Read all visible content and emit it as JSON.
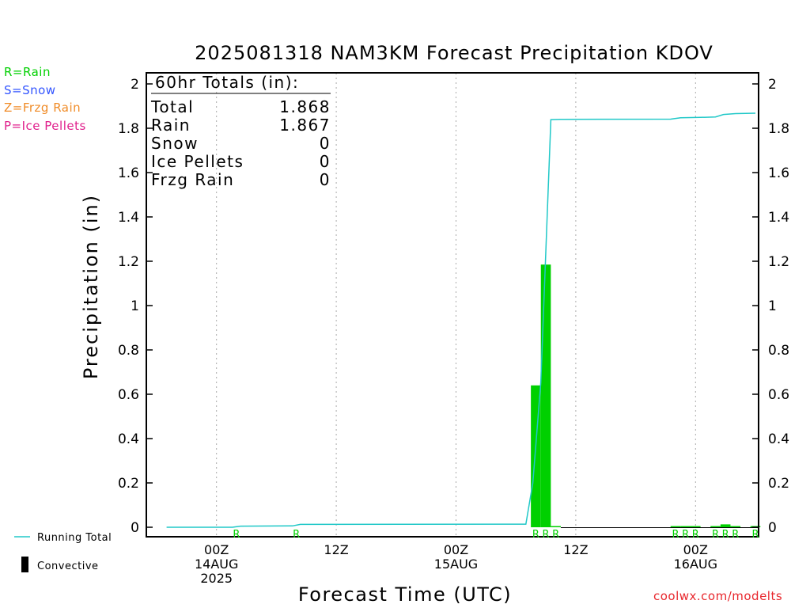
{
  "title": "2025081318 NAM3KM Forecast Precipitation KDOV",
  "precip_type_legend": [
    {
      "text": "R=Rain",
      "color": "#00d000"
    },
    {
      "text": "S=Snow",
      "color": "#3355ff"
    },
    {
      "text": "Z=Frzg Rain",
      "color": "#f08c28"
    },
    {
      "text": "P=Ice Pellets",
      "color": "#e0208c"
    }
  ],
  "totals_box": {
    "heading": "60hr Totals (in):",
    "rows": [
      {
        "label": "Total",
        "value": "1.868"
      },
      {
        "label": "Rain",
        "value": "1.867"
      },
      {
        "label": "Snow",
        "value": "0"
      },
      {
        "label": "Ice Pellets",
        "value": "0"
      },
      {
        "label": "Frzg Rain",
        "value": "0"
      }
    ]
  },
  "series_legend": {
    "running_total": "Running Total",
    "convective": "Convective"
  },
  "credit": "coolwx.com/modelts",
  "colors": {
    "running_total": "#20c8c8",
    "rain": "#00d000",
    "grid": "#aaaaaa"
  },
  "chart_data": {
    "type": "bar",
    "title": "2025081318 NAM3KM Forecast Precipitation KDOV",
    "xlabel": "Forecast Time (UTC)",
    "ylabel": "Precipitation (in)",
    "x_units": "forecast hour",
    "xlim": [
      0,
      60
    ],
    "ylim": [
      0,
      2.1
    ],
    "y_ticks": [
      "0",
      "0.2",
      "0.4",
      "0.6",
      "0.8",
      "1",
      "1.2",
      "1.4",
      "1.6",
      "1.8",
      "2"
    ],
    "y_tick_values": [
      0,
      0.2,
      0.4,
      0.6,
      0.8,
      1,
      1.2,
      1.4,
      1.6,
      1.8,
      2
    ],
    "x_ticks": [
      {
        "x": 6,
        "lines": [
          "00Z",
          "14AUG",
          "2025"
        ]
      },
      {
        "x": 18,
        "lines": [
          "12Z"
        ]
      },
      {
        "x": 30,
        "lines": [
          "00Z",
          "15AUG"
        ]
      },
      {
        "x": 42,
        "lines": [
          "12Z"
        ]
      },
      {
        "x": 54,
        "lines": [
          "00Z",
          "16AUG"
        ]
      }
    ],
    "grid_x": [
      6,
      18,
      30,
      42,
      54
    ],
    "bars": [
      {
        "x": 38,
        "value": 0.64,
        "type": "R"
      },
      {
        "x": 39,
        "value": 1.185,
        "type": "R"
      },
      {
        "x": 40,
        "value": 0.001,
        "type": "R"
      },
      {
        "x": 52,
        "value": 0.001,
        "type": "R"
      },
      {
        "x": 53,
        "value": 0.001,
        "type": "R"
      },
      {
        "x": 54,
        "value": 0.001,
        "type": "R"
      },
      {
        "x": 56,
        "value": 0.001,
        "type": "R"
      },
      {
        "x": 57,
        "value": 0.013,
        "type": "R"
      },
      {
        "x": 58,
        "value": 0.001,
        "type": "R"
      },
      {
        "x": 60,
        "value": 0.001,
        "type": "R"
      }
    ],
    "type_markers": [
      {
        "x": 8,
        "type": "R"
      },
      {
        "x": 14,
        "type": "R"
      },
      {
        "x": 38,
        "type": "R"
      },
      {
        "x": 39,
        "type": "R"
      },
      {
        "x": 40,
        "type": "R"
      },
      {
        "x": 52,
        "type": "R"
      },
      {
        "x": 53,
        "type": "R"
      },
      {
        "x": 54,
        "type": "R"
      },
      {
        "x": 56,
        "type": "R"
      },
      {
        "x": 57,
        "type": "R"
      },
      {
        "x": 58,
        "type": "R"
      },
      {
        "x": 60,
        "type": "R"
      }
    ],
    "running_total": [
      [
        1,
        0.0
      ],
      [
        7.6,
        0.0
      ],
      [
        8.4,
        0.005
      ],
      [
        13.6,
        0.006
      ],
      [
        14.4,
        0.013
      ],
      [
        37.0,
        0.014
      ],
      [
        37.7,
        0.2
      ],
      [
        38.5,
        0.654
      ],
      [
        39.5,
        1.839
      ],
      [
        40.5,
        1.84
      ],
      [
        51.5,
        1.841
      ],
      [
        52.5,
        1.847
      ],
      [
        54.5,
        1.849
      ],
      [
        56.0,
        1.851
      ],
      [
        56.8,
        1.862
      ],
      [
        58.0,
        1.866
      ],
      [
        60,
        1.868
      ]
    ]
  }
}
